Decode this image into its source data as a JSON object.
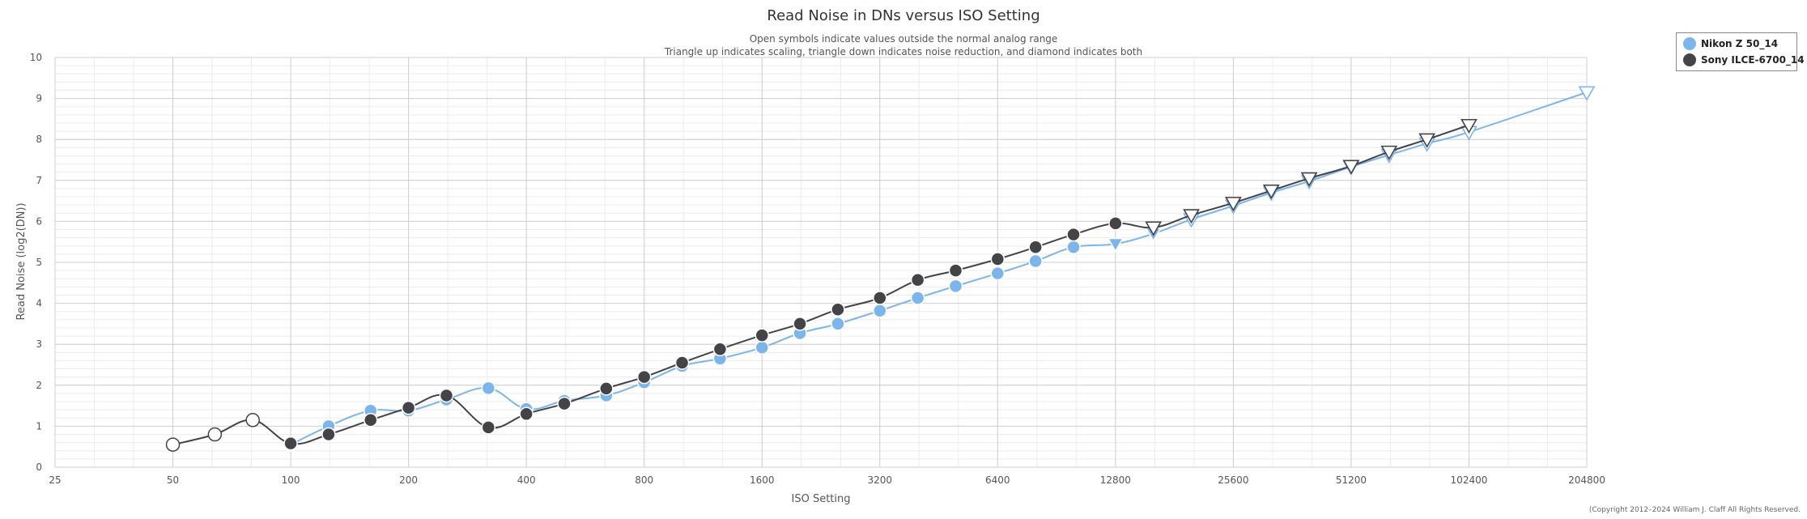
{
  "chart_data": {
    "type": "line",
    "title": "Read Noise in DNs versus ISO Setting",
    "subtitle_lines": [
      "Open symbols indicate values outside the normal analog range",
      "Triangle up indicates scaling, triangle down indicates noise reduction, and diamond indicates both"
    ],
    "xlabel": "ISO Setting",
    "ylabel": "Read Noise (log2(DN))",
    "x_scale": "log2",
    "xlim": [
      25,
      204800
    ],
    "ylim": [
      0,
      10
    ],
    "x_ticks": [
      25,
      50,
      100,
      200,
      400,
      800,
      1600,
      3200,
      6400,
      12800,
      25600,
      51200,
      102400,
      204800
    ],
    "y_ticks": [
      0,
      1,
      2,
      3,
      4,
      5,
      6,
      7,
      8,
      9,
      10
    ],
    "grid": true,
    "legend_position": "top-right",
    "series": [
      {
        "name": "Nikon Z 50_14",
        "color": "#7cb5ec",
        "points": [
          {
            "iso": 100,
            "value": 0.55,
            "marker": "circle",
            "open": false
          },
          {
            "iso": 125,
            "value": 1.0,
            "marker": "circle",
            "open": false
          },
          {
            "iso": 160,
            "value": 1.38,
            "marker": "circle",
            "open": false
          },
          {
            "iso": 200,
            "value": 1.38,
            "marker": "circle",
            "open": false
          },
          {
            "iso": 250,
            "value": 1.65,
            "marker": "circle",
            "open": false
          },
          {
            "iso": 320,
            "value": 1.93,
            "marker": "circle",
            "open": false
          },
          {
            "iso": 400,
            "value": 1.42,
            "marker": "circle",
            "open": false
          },
          {
            "iso": 500,
            "value": 1.62,
            "marker": "circle",
            "open": false
          },
          {
            "iso": 640,
            "value": 1.75,
            "marker": "circle",
            "open": false
          },
          {
            "iso": 800,
            "value": 2.07,
            "marker": "circle",
            "open": false
          },
          {
            "iso": 1000,
            "value": 2.47,
            "marker": "circle",
            "open": false
          },
          {
            "iso": 1250,
            "value": 2.65,
            "marker": "circle",
            "open": false
          },
          {
            "iso": 1600,
            "value": 2.92,
            "marker": "circle",
            "open": false
          },
          {
            "iso": 2000,
            "value": 3.27,
            "marker": "circle",
            "open": false
          },
          {
            "iso": 2500,
            "value": 3.5,
            "marker": "circle",
            "open": false
          },
          {
            "iso": 3200,
            "value": 3.82,
            "marker": "circle",
            "open": false
          },
          {
            "iso": 4000,
            "value": 4.13,
            "marker": "circle",
            "open": false
          },
          {
            "iso": 5000,
            "value": 4.42,
            "marker": "circle",
            "open": false
          },
          {
            "iso": 6400,
            "value": 4.73,
            "marker": "circle",
            "open": false
          },
          {
            "iso": 8000,
            "value": 5.03,
            "marker": "circle",
            "open": false
          },
          {
            "iso": 10000,
            "value": 5.37,
            "marker": "circle",
            "open": false
          },
          {
            "iso": 12800,
            "value": 5.45,
            "marker": "triangle-down",
            "open": false
          },
          {
            "iso": 16000,
            "value": 5.7,
            "marker": "triangle-down",
            "open": false
          },
          {
            "iso": 20000,
            "value": 6.05,
            "marker": "triangle-down",
            "open": true
          },
          {
            "iso": 25600,
            "value": 6.38,
            "marker": "triangle-down",
            "open": true
          },
          {
            "iso": 32000,
            "value": 6.7,
            "marker": "triangle-down",
            "open": true
          },
          {
            "iso": 40000,
            "value": 6.98,
            "marker": "triangle-down",
            "open": true
          },
          {
            "iso": 51200,
            "value": 7.33,
            "marker": "triangle-down",
            "open": true
          },
          {
            "iso": 64000,
            "value": 7.62,
            "marker": "triangle-down",
            "open": true
          },
          {
            "iso": 80000,
            "value": 7.9,
            "marker": "triangle-down",
            "open": true
          },
          {
            "iso": 102400,
            "value": 8.18,
            "marker": "triangle-down",
            "open": true
          },
          {
            "iso": 204800,
            "value": 9.15,
            "marker": "triangle-down",
            "open": true
          }
        ]
      },
      {
        "name": "Sony ILCE-6700_14",
        "color": "#434348",
        "points": [
          {
            "iso": 50,
            "value": 0.55,
            "marker": "circle",
            "open": true
          },
          {
            "iso": 64,
            "value": 0.8,
            "marker": "circle",
            "open": true
          },
          {
            "iso": 80,
            "value": 1.15,
            "marker": "circle",
            "open": true
          },
          {
            "iso": 100,
            "value": 0.58,
            "marker": "circle",
            "open": false
          },
          {
            "iso": 125,
            "value": 0.8,
            "marker": "circle",
            "open": false
          },
          {
            "iso": 160,
            "value": 1.15,
            "marker": "circle",
            "open": false
          },
          {
            "iso": 200,
            "value": 1.45,
            "marker": "circle",
            "open": false
          },
          {
            "iso": 250,
            "value": 1.75,
            "marker": "circle",
            "open": false
          },
          {
            "iso": 320,
            "value": 0.97,
            "marker": "circle",
            "open": false
          },
          {
            "iso": 400,
            "value": 1.3,
            "marker": "circle",
            "open": false
          },
          {
            "iso": 500,
            "value": 1.55,
            "marker": "circle",
            "open": false
          },
          {
            "iso": 640,
            "value": 1.92,
            "marker": "circle",
            "open": false
          },
          {
            "iso": 800,
            "value": 2.2,
            "marker": "circle",
            "open": false
          },
          {
            "iso": 1000,
            "value": 2.55,
            "marker": "circle",
            "open": false
          },
          {
            "iso": 1250,
            "value": 2.88,
            "marker": "circle",
            "open": false
          },
          {
            "iso": 1600,
            "value": 3.22,
            "marker": "circle",
            "open": false
          },
          {
            "iso": 2000,
            "value": 3.5,
            "marker": "circle",
            "open": false
          },
          {
            "iso": 2500,
            "value": 3.85,
            "marker": "circle",
            "open": false
          },
          {
            "iso": 3200,
            "value": 4.13,
            "marker": "circle",
            "open": false
          },
          {
            "iso": 4000,
            "value": 4.57,
            "marker": "circle",
            "open": false
          },
          {
            "iso": 5000,
            "value": 4.8,
            "marker": "circle",
            "open": false
          },
          {
            "iso": 6400,
            "value": 5.08,
            "marker": "circle",
            "open": false
          },
          {
            "iso": 8000,
            "value": 5.37,
            "marker": "circle",
            "open": false
          },
          {
            "iso": 10000,
            "value": 5.68,
            "marker": "circle",
            "open": false
          },
          {
            "iso": 12800,
            "value": 5.95,
            "marker": "circle",
            "open": false
          },
          {
            "iso": 16000,
            "value": 5.85,
            "marker": "triangle-down",
            "open": true
          },
          {
            "iso": 20000,
            "value": 6.15,
            "marker": "triangle-down",
            "open": true
          },
          {
            "iso": 25600,
            "value": 6.45,
            "marker": "triangle-down",
            "open": true
          },
          {
            "iso": 32000,
            "value": 6.75,
            "marker": "triangle-down",
            "open": true
          },
          {
            "iso": 40000,
            "value": 7.05,
            "marker": "triangle-down",
            "open": true
          },
          {
            "iso": 51200,
            "value": 7.35,
            "marker": "triangle-down",
            "open": true
          },
          {
            "iso": 64000,
            "value": 7.7,
            "marker": "triangle-down",
            "open": true
          },
          {
            "iso": 80000,
            "value": 8.0,
            "marker": "triangle-down",
            "open": true
          },
          {
            "iso": 102400,
            "value": 8.35,
            "marker": "triangle-down",
            "open": true
          }
        ]
      }
    ]
  },
  "copyright": "(Copyright 2012–2024 William J. Claff All Rights Reserved."
}
